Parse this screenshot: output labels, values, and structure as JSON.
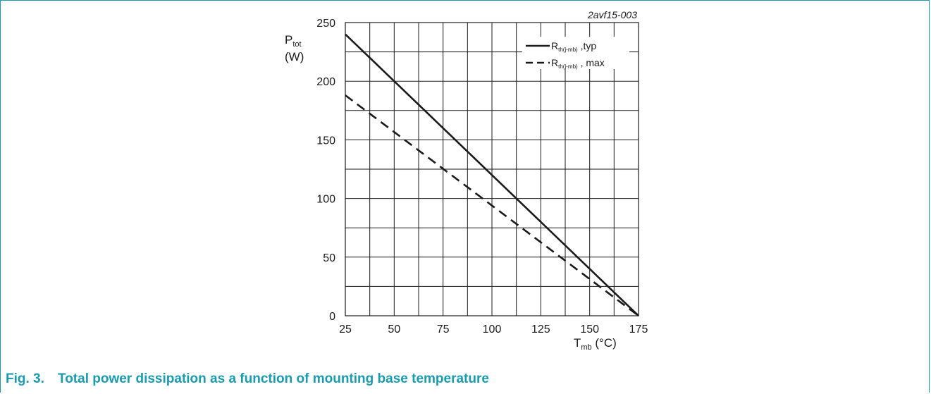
{
  "chart_data": {
    "type": "line",
    "code": "2avf15-003",
    "xlim": [
      25,
      175
    ],
    "ylim": [
      0,
      250
    ],
    "x_ticks": [
      25,
      50,
      75,
      100,
      125,
      150,
      175
    ],
    "y_ticks": [
      0,
      50,
      100,
      150,
      200,
      250
    ],
    "ylabel": {
      "main": "P",
      "sub": "tot",
      "unit": "(W)"
    },
    "xlabel": {
      "main": "T",
      "sub": "mb",
      "unit": " (°C)"
    },
    "grid": true,
    "legend_position": "top-right",
    "series": [
      {
        "name_main": "R",
        "name_sub": "th(j-mb)",
        "name_suffix": " ,typ",
        "style": "solid",
        "points": [
          [
            25,
            240
          ],
          [
            175,
            0
          ]
        ]
      },
      {
        "name_main": "R",
        "name_sub": "th(j-mb)",
        "name_suffix": " , max",
        "style": "dashed",
        "points": [
          [
            25,
            188
          ],
          [
            175,
            0
          ]
        ]
      }
    ]
  },
  "caption": {
    "number": "Fig. 3.",
    "text": "Total power dissipation as a function of mounting base temperature"
  },
  "colors": {
    "accent": "#1a9bb0",
    "ink": "#1a1a1a"
  }
}
